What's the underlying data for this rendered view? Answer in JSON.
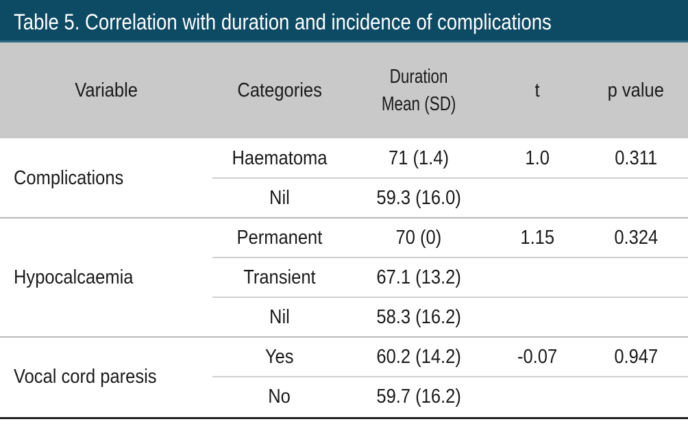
{
  "title": "Table  5. Correlation with duration and incidence of complications",
  "header": {
    "variable": "Variable",
    "categories": "Categories",
    "duration_line1": "Duration",
    "duration_line2": "Mean (SD)",
    "t": "t",
    "p_value": "p value"
  },
  "groups": [
    {
      "variable": "Complications",
      "rows": [
        {
          "category": "Haematoma",
          "duration": "71 (1.4)",
          "t": "1.0",
          "p": "0.311"
        },
        {
          "category": "Nil",
          "duration": "59.3 (16.0)",
          "t": "",
          "p": ""
        }
      ]
    },
    {
      "variable": "Hypocalcaemia",
      "rows": [
        {
          "category": "Permanent",
          "duration": "70 (0)",
          "t": "1.15",
          "p": "0.324"
        },
        {
          "category": "Transient",
          "duration": "67.1 (13.2)",
          "t": "",
          "p": ""
        },
        {
          "category": "Nil",
          "duration": "58.3 (16.2)",
          "t": "",
          "p": ""
        }
      ]
    },
    {
      "variable": "Vocal cord paresis",
      "rows": [
        {
          "category": "Yes",
          "duration": "60.2 (14.2)",
          "t": "-0.07",
          "p": "0.947"
        },
        {
          "category": "No",
          "duration": "59.7 (16.2)",
          "t": "",
          "p": ""
        }
      ]
    }
  ]
}
